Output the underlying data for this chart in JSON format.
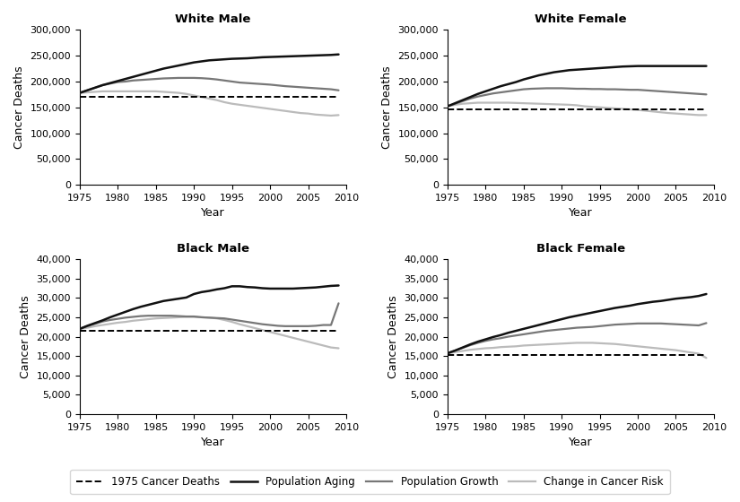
{
  "years": [
    1975,
    1976,
    1977,
    1978,
    1979,
    1980,
    1981,
    1982,
    1983,
    1984,
    1985,
    1986,
    1987,
    1988,
    1989,
    1990,
    1991,
    1992,
    1993,
    1994,
    1995,
    1996,
    1997,
    1998,
    1999,
    2000,
    2001,
    2002,
    2003,
    2004,
    2005,
    2006,
    2007,
    2008,
    2009
  ],
  "white_male": {
    "title": "White Male",
    "baseline": 171000,
    "ylim": [
      0,
      300000
    ],
    "yticks": [
      0,
      50000,
      100000,
      150000,
      200000,
      250000,
      300000
    ],
    "pop_aging": [
      178000,
      183000,
      188000,
      193000,
      197000,
      201000,
      205000,
      209000,
      213000,
      217000,
      221000,
      225000,
      228000,
      231000,
      234000,
      237000,
      239000,
      241000,
      242000,
      243000,
      244000,
      244500,
      245000,
      246000,
      247000,
      247500,
      248000,
      248500,
      249000,
      249500,
      250000,
      250500,
      251000,
      251500,
      252500
    ],
    "pop_growth": [
      178000,
      183000,
      188000,
      193000,
      196000,
      199000,
      200000,
      202000,
      203000,
      204000,
      205000,
      206000,
      206500,
      207000,
      207000,
      207000,
      206500,
      205500,
      204000,
      202000,
      200000,
      198000,
      197000,
      196000,
      195000,
      194000,
      192500,
      191000,
      190000,
      189000,
      188000,
      187000,
      186000,
      185000,
      183000
    ],
    "cancer_risk": [
      178000,
      179000,
      180000,
      181000,
      181000,
      181000,
      181000,
      181000,
      181000,
      181000,
      181000,
      180000,
      179000,
      178000,
      176000,
      173000,
      170000,
      167000,
      164000,
      160000,
      157000,
      155000,
      153000,
      151000,
      149000,
      147000,
      145000,
      143000,
      141000,
      139000,
      138000,
      136000,
      135000,
      134000,
      135000
    ]
  },
  "white_female": {
    "title": "White Female",
    "baseline": 146000,
    "ylim": [
      0,
      300000
    ],
    "yticks": [
      0,
      50000,
      100000,
      150000,
      200000,
      250000,
      300000
    ],
    "pop_aging": [
      152000,
      158000,
      164000,
      170000,
      176000,
      181000,
      186000,
      191000,
      195000,
      199000,
      204000,
      208000,
      212000,
      215000,
      218000,
      220000,
      222000,
      223000,
      224000,
      225000,
      226000,
      227000,
      228000,
      229000,
      229500,
      230000,
      230000,
      230000,
      230000,
      230000,
      230000,
      230000,
      230000,
      230000,
      230000
    ],
    "pop_growth": [
      152000,
      157000,
      162000,
      167000,
      171000,
      174000,
      177000,
      179000,
      181000,
      183000,
      185000,
      186000,
      186500,
      187000,
      187000,
      187000,
      186500,
      186000,
      186000,
      185500,
      185500,
      185000,
      185000,
      184500,
      184000,
      184000,
      183000,
      182000,
      181000,
      180000,
      179000,
      178000,
      177000,
      176000,
      175000
    ],
    "cancer_risk": [
      152000,
      155000,
      157000,
      158000,
      159000,
      159000,
      159000,
      159000,
      159000,
      158500,
      158000,
      157500,
      157000,
      156500,
      156000,
      155500,
      155000,
      154000,
      152000,
      151000,
      150000,
      149000,
      148000,
      147000,
      146000,
      145000,
      143500,
      142000,
      140500,
      139000,
      138000,
      137000,
      136000,
      135000,
      135000
    ]
  },
  "black_male": {
    "title": "Black Male",
    "baseline": 21500,
    "ylim": [
      0,
      40000
    ],
    "yticks": [
      0,
      5000,
      10000,
      15000,
      20000,
      25000,
      30000,
      35000,
      40000
    ],
    "pop_aging": [
      22000,
      22800,
      23500,
      24200,
      25000,
      25700,
      26400,
      27100,
      27700,
      28200,
      28700,
      29200,
      29500,
      29800,
      30100,
      31000,
      31500,
      31800,
      32200,
      32500,
      33000,
      33000,
      32800,
      32700,
      32500,
      32400,
      32400,
      32400,
      32400,
      32500,
      32600,
      32700,
      32900,
      33100,
      33200
    ],
    "pop_growth": [
      22000,
      22700,
      23300,
      23900,
      24300,
      24600,
      24900,
      25100,
      25300,
      25400,
      25400,
      25400,
      25400,
      25300,
      25200,
      25200,
      25000,
      24900,
      24800,
      24700,
      24400,
      24100,
      23800,
      23500,
      23200,
      23000,
      22800,
      22700,
      22700,
      22700,
      22700,
      22800,
      23000,
      23000,
      28600
    ],
    "cancer_risk": [
      22000,
      22300,
      22700,
      23000,
      23300,
      23600,
      23800,
      24100,
      24300,
      24500,
      24700,
      24800,
      24900,
      25000,
      25100,
      25100,
      25000,
      24900,
      24700,
      24300,
      23800,
      23200,
      22700,
      22200,
      21700,
      21200,
      20700,
      20200,
      19700,
      19200,
      18700,
      18200,
      17700,
      17200,
      17000
    ]
  },
  "black_female": {
    "title": "Black Female",
    "baseline": 15300,
    "ylim": [
      0,
      40000
    ],
    "yticks": [
      0,
      5000,
      10000,
      15000,
      20000,
      25000,
      30000,
      35000,
      40000
    ],
    "pop_aging": [
      15700,
      16400,
      17200,
      18000,
      18700,
      19300,
      19900,
      20400,
      21000,
      21500,
      22000,
      22500,
      23000,
      23500,
      24000,
      24500,
      25000,
      25400,
      25800,
      26200,
      26600,
      27000,
      27400,
      27700,
      28000,
      28400,
      28700,
      29000,
      29200,
      29500,
      29800,
      30000,
      30200,
      30500,
      31000
    ],
    "pop_growth": [
      15700,
      16400,
      17100,
      17800,
      18400,
      18900,
      19300,
      19600,
      20000,
      20300,
      20600,
      20900,
      21200,
      21500,
      21700,
      21900,
      22100,
      22300,
      22400,
      22500,
      22700,
      22900,
      23100,
      23200,
      23300,
      23400,
      23400,
      23400,
      23400,
      23300,
      23200,
      23100,
      23000,
      22900,
      23500
    ],
    "cancer_risk": [
      15700,
      16000,
      16300,
      16600,
      16800,
      17000,
      17100,
      17300,
      17400,
      17500,
      17700,
      17800,
      17900,
      18000,
      18100,
      18200,
      18300,
      18400,
      18400,
      18400,
      18300,
      18200,
      18100,
      17900,
      17700,
      17500,
      17300,
      17100,
      16900,
      16700,
      16500,
      16200,
      15900,
      15600,
      14500
    ]
  },
  "colors": {
    "baseline": "#000000",
    "pop_aging": "#111111",
    "pop_growth": "#777777",
    "cancer_risk": "#bbbbbb"
  },
  "legend_labels": [
    "1975 Cancer Deaths",
    "Population Aging",
    "Population Growth",
    "Change in Cancer Risk"
  ],
  "xlabel": "Year",
  "ylabel": "Cancer Deaths"
}
